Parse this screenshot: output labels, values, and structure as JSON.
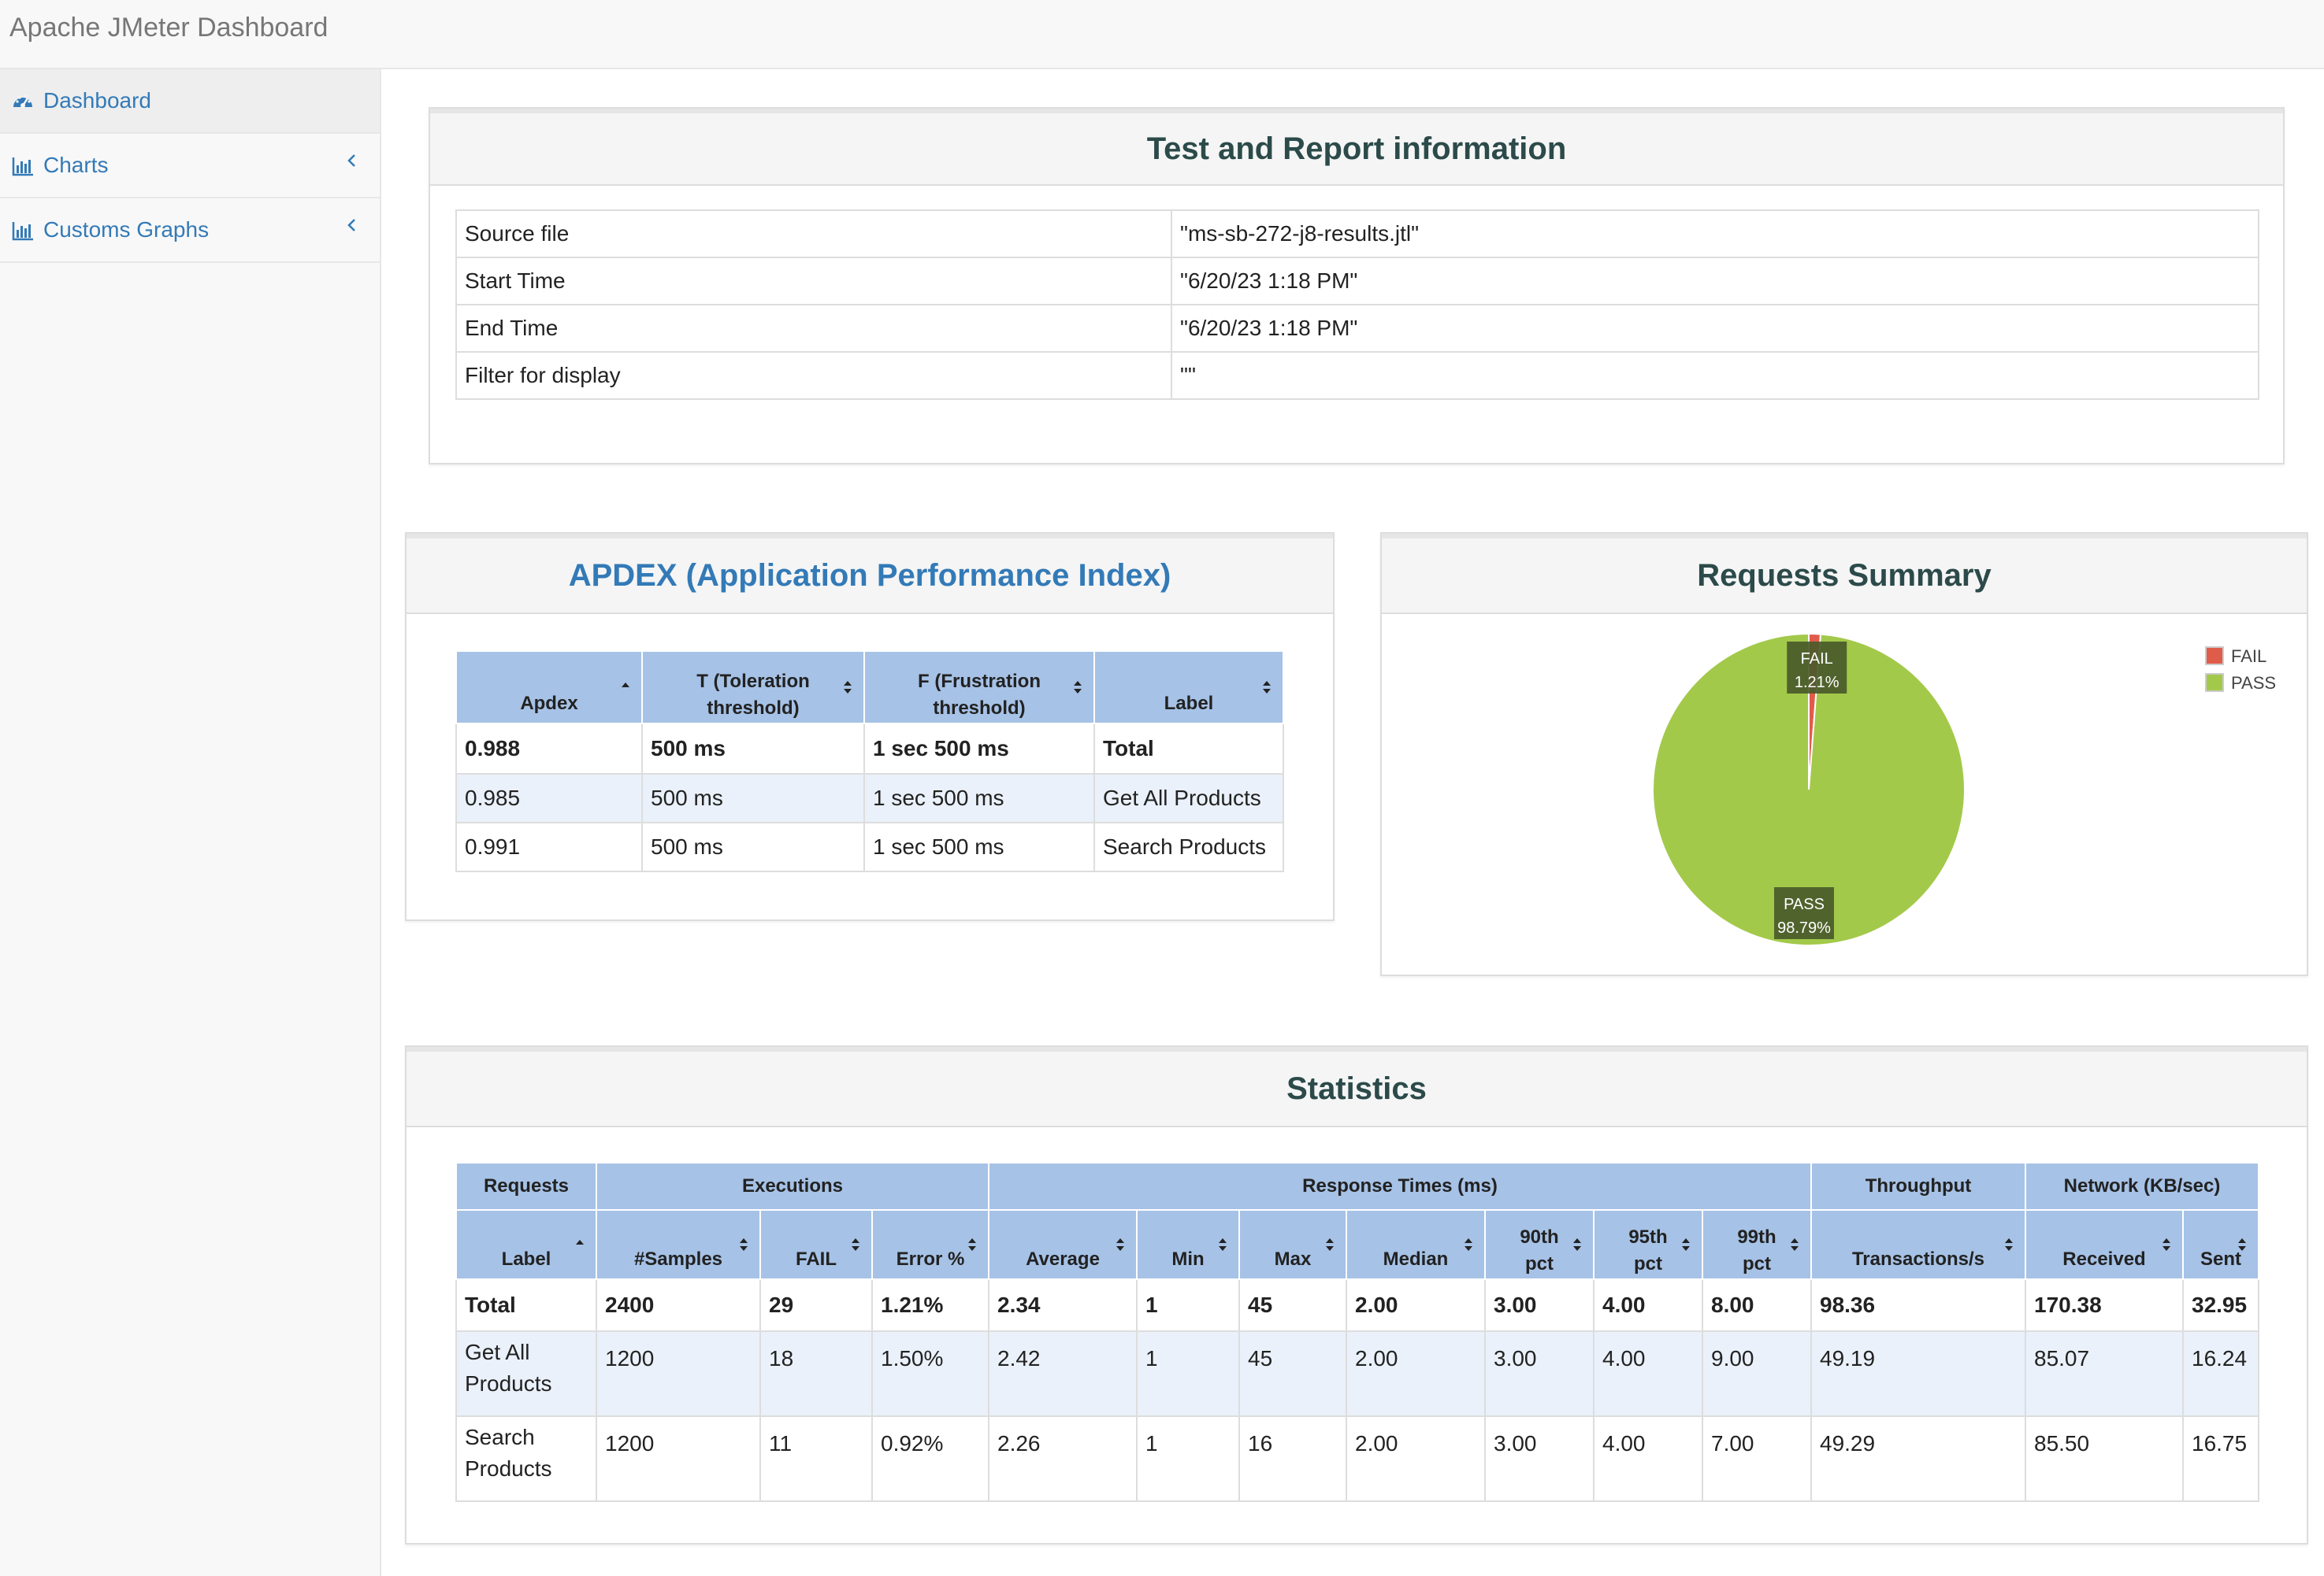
{
  "app": {
    "title": "Apache JMeter Dashboard"
  },
  "sidebar": {
    "items": [
      {
        "label": "Dashboard",
        "icon": "dashboard-icon"
      },
      {
        "label": "Charts",
        "icon": "bar-chart-icon"
      },
      {
        "label": "Customs Graphs",
        "icon": "bar-chart-icon"
      }
    ]
  },
  "info": {
    "title": "Test and Report information",
    "rows": [
      {
        "key": "Source file",
        "value": "\"ms-sb-272-j8-results.jtl\""
      },
      {
        "key": "Start Time",
        "value": "\"6/20/23 1:18 PM\""
      },
      {
        "key": "End Time",
        "value": "\"6/20/23 1:18 PM\""
      },
      {
        "key": "Filter for display",
        "value": "\"\""
      }
    ]
  },
  "apdex": {
    "title": "APDEX (Application Performance Index)",
    "headers": [
      "Apdex",
      "T (Toleration threshold)",
      "F (Frustration threshold)",
      "Label"
    ],
    "header_lines": [
      [
        "Apdex"
      ],
      [
        "T (Toleration",
        "threshold)"
      ],
      [
        "F (Frustration",
        "threshold)"
      ],
      [
        "Label"
      ]
    ],
    "rows": [
      [
        "0.988",
        "500 ms",
        "1 sec 500 ms",
        "Total"
      ],
      [
        "0.985",
        "500 ms",
        "1 sec 500 ms",
        "Get All Products"
      ],
      [
        "0.991",
        "500 ms",
        "1 sec 500 ms",
        "Search Products"
      ]
    ]
  },
  "summary": {
    "title": "Requests Summary",
    "colors": {
      "FAIL": "#e05c4a",
      "PASS": "#a3c94a"
    }
  },
  "chart_data": {
    "type": "pie",
    "title": "Requests Summary",
    "labels": [
      "FAIL",
      "PASS"
    ],
    "values": [
      1.21,
      98.79
    ],
    "data_labels": [
      "1.21%",
      "98.79%"
    ],
    "legend": "top-right"
  },
  "stats": {
    "title": "Statistics",
    "groups": [
      "Requests",
      "Executions",
      "Response Times (ms)",
      "Throughput",
      "Network (KB/sec)"
    ],
    "columns": [
      [
        "Label"
      ],
      [
        "#Samples"
      ],
      [
        "FAIL"
      ],
      [
        "Error %"
      ],
      [
        "Average"
      ],
      [
        "Min"
      ],
      [
        "Max"
      ],
      [
        "Median"
      ],
      [
        "90th",
        "pct"
      ],
      [
        "95th",
        "pct"
      ],
      [
        "99th",
        "pct"
      ],
      [
        "Transactions/s"
      ],
      [
        "Received"
      ],
      [
        "Sent"
      ]
    ],
    "rows": [
      [
        "Total",
        "2400",
        "29",
        "1.21%",
        "2.34",
        "1",
        "45",
        "2.00",
        "3.00",
        "4.00",
        "8.00",
        "98.36",
        "170.38",
        "32.95"
      ],
      [
        "Get All Products",
        "1200",
        "18",
        "1.50%",
        "2.42",
        "1",
        "45",
        "2.00",
        "3.00",
        "4.00",
        "9.00",
        "49.19",
        "85.07",
        "16.24"
      ],
      [
        "Search Products",
        "1200",
        "11",
        "0.92%",
        "2.26",
        "1",
        "16",
        "2.00",
        "3.00",
        "4.00",
        "7.00",
        "49.29",
        "85.50",
        "16.75"
      ]
    ],
    "label_lines": [
      [
        "Get All",
        "Products"
      ],
      [
        "Search",
        "Products"
      ]
    ]
  }
}
